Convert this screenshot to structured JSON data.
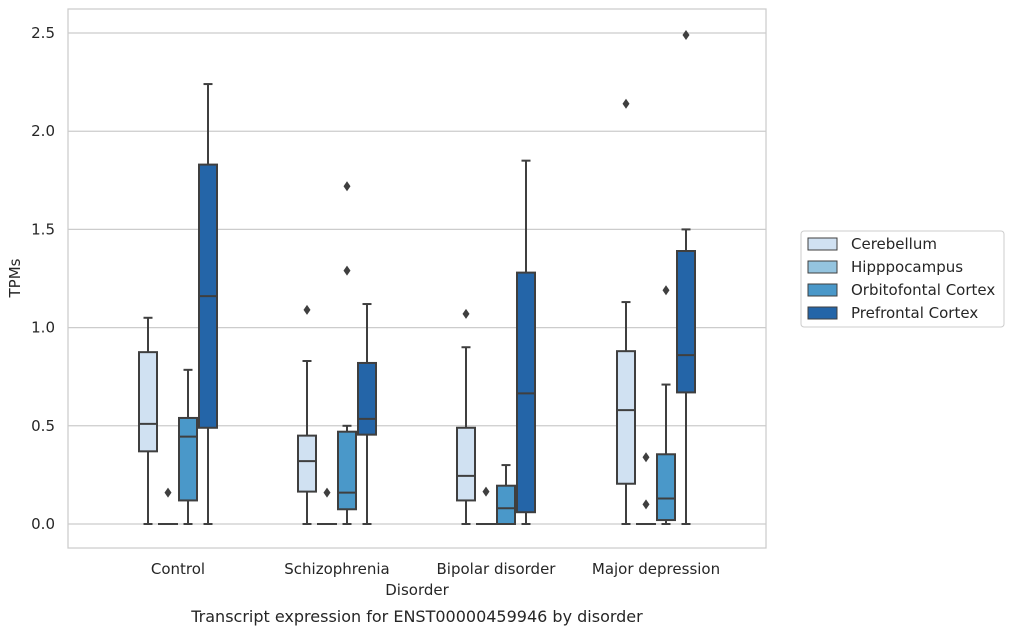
{
  "chart_data": {
    "type": "box",
    "title": "",
    "caption": "Transcript expression for ENST00000459946 by disorder",
    "xlabel": "Disorder",
    "ylabel": "TPMs",
    "ylim": [
      -0.12,
      2.62
    ],
    "yticks": [
      "0.0",
      "0.5",
      "1.0",
      "1.5",
      "2.0",
      "2.5"
    ],
    "ytick_values": [
      0,
      0.5,
      1.0,
      1.5,
      2.0,
      2.5
    ],
    "grid": true,
    "legend_position": "right",
    "categories": [
      "Control",
      "Schizophrenia",
      "Bipolar disorder",
      "Major depression"
    ],
    "series": [
      {
        "name": "Cerebellum",
        "color": "#d0e1f2",
        "boxes": [
          {
            "whisker_low": 0,
            "q1": 0.37,
            "median": 0.51,
            "q3": 0.875,
            "whisker_high": 1.05,
            "outliers": []
          },
          {
            "whisker_low": 0,
            "q1": 0.165,
            "median": 0.32,
            "q3": 0.45,
            "whisker_high": 0.83,
            "outliers": [
              1.09
            ]
          },
          {
            "whisker_low": 0,
            "q1": 0.12,
            "median": 0.245,
            "q3": 0.49,
            "whisker_high": 0.9,
            "outliers": [
              1.07
            ]
          },
          {
            "whisker_low": 0,
            "q1": 0.205,
            "median": 0.58,
            "q3": 0.88,
            "whisker_high": 1.13,
            "outliers": [
              2.14
            ]
          }
        ]
      },
      {
        "name": "Hipppocampus",
        "color": "#94c4df",
        "boxes": [
          {
            "whisker_low": 0,
            "q1": 0,
            "median": 0,
            "q3": 0,
            "whisker_high": 0,
            "outliers": [
              0.16
            ]
          },
          {
            "whisker_low": 0,
            "q1": 0,
            "median": 0,
            "q3": 0,
            "whisker_high": 0,
            "outliers": [
              0.16
            ]
          },
          {
            "whisker_low": 0,
            "q1": 0,
            "median": 0,
            "q3": 0,
            "whisker_high": 0,
            "outliers": [
              0.165
            ]
          },
          {
            "whisker_low": 0,
            "q1": 0,
            "median": 0,
            "q3": 0,
            "whisker_high": 0,
            "outliers": [
              0.34,
              0.1
            ]
          }
        ]
      },
      {
        "name": "Orbitofontal Cortex",
        "color": "#4a98c9",
        "boxes": [
          {
            "whisker_low": 0,
            "q1": 0.12,
            "median": 0.445,
            "q3": 0.54,
            "whisker_high": 0.785,
            "outliers": []
          },
          {
            "whisker_low": 0,
            "q1": 0.075,
            "median": 0.16,
            "q3": 0.47,
            "whisker_high": 0.5,
            "outliers": [
              1.72,
              1.29
            ]
          },
          {
            "whisker_low": 0,
            "q1": 0,
            "median": 0.08,
            "q3": 0.195,
            "whisker_high": 0.3,
            "outliers": []
          },
          {
            "whisker_low": 0,
            "q1": 0.02,
            "median": 0.13,
            "q3": 0.355,
            "whisker_high": 0.71,
            "outliers": [
              1.19
            ]
          }
        ]
      },
      {
        "name": "Prefrontal Cortex",
        "color": "#2465a8",
        "boxes": [
          {
            "whisker_low": 0,
            "q1": 0.49,
            "median": 1.16,
            "q3": 1.83,
            "whisker_high": 2.24,
            "outliers": []
          },
          {
            "whisker_low": 0,
            "q1": 0.455,
            "median": 0.535,
            "q3": 0.82,
            "whisker_high": 1.12,
            "outliers": []
          },
          {
            "whisker_low": 0,
            "q1": 0.06,
            "median": 0.665,
            "q3": 1.28,
            "whisker_high": 1.85,
            "outliers": []
          },
          {
            "whisker_low": 0,
            "q1": 0.67,
            "median": 0.86,
            "q3": 1.39,
            "whisker_high": 1.5,
            "outliers": [
              2.49
            ]
          }
        ]
      }
    ]
  }
}
